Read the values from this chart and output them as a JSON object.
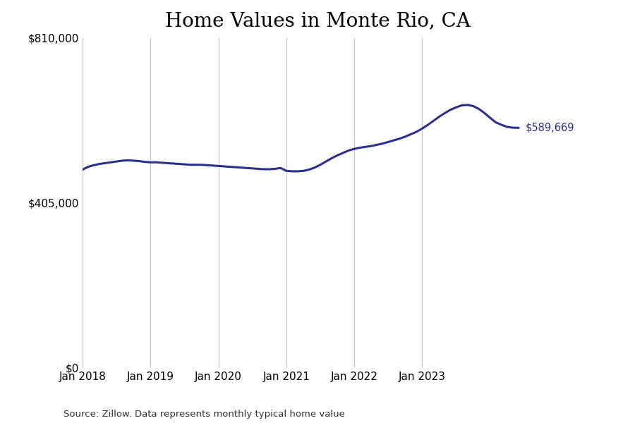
{
  "title": "Home Values in Monte Rio, CA",
  "source_text": "Source: Zillow. Data represents monthly typical home value",
  "line_color": "#2b2f8e",
  "label_color": "#2b2f8e",
  "end_label": "$589,669",
  "yticks": [
    0,
    405000,
    810000
  ],
  "xtick_labels": [
    "Jan 2018",
    "Jan 2019",
    "Jan 2020",
    "Jan 2021",
    "Jan 2022",
    "Jan 2023"
  ],
  "values": [
    487000,
    494000,
    498000,
    501000,
    503000,
    505000,
    507000,
    509000,
    510000,
    509000,
    508000,
    506000,
    505000,
    505000,
    504000,
    503000,
    502000,
    501000,
    500000,
    499000,
    499000,
    499000,
    498000,
    497000,
    496000,
    495000,
    494000,
    493000,
    492000,
    491000,
    490000,
    489000,
    488000,
    488000,
    489000,
    491000,
    484000,
    483000,
    483000,
    484000,
    487000,
    492000,
    499000,
    507000,
    515000,
    522000,
    528000,
    534000,
    538000,
    541000,
    543000,
    545000,
    548000,
    551000,
    555000,
    559000,
    563000,
    568000,
    574000,
    580000,
    588000,
    597000,
    607000,
    617000,
    626000,
    634000,
    640000,
    645000,
    646000,
    643000,
    636000,
    626000,
    614000,
    603000,
    597000,
    592000,
    590000,
    589669
  ],
  "ylim": [
    0,
    810000
  ],
  "xlim_extra": 6,
  "background_color": "#ffffff",
  "grid_color": "#c8c8c8",
  "title_fontsize": 20,
  "tick_fontsize": 11
}
